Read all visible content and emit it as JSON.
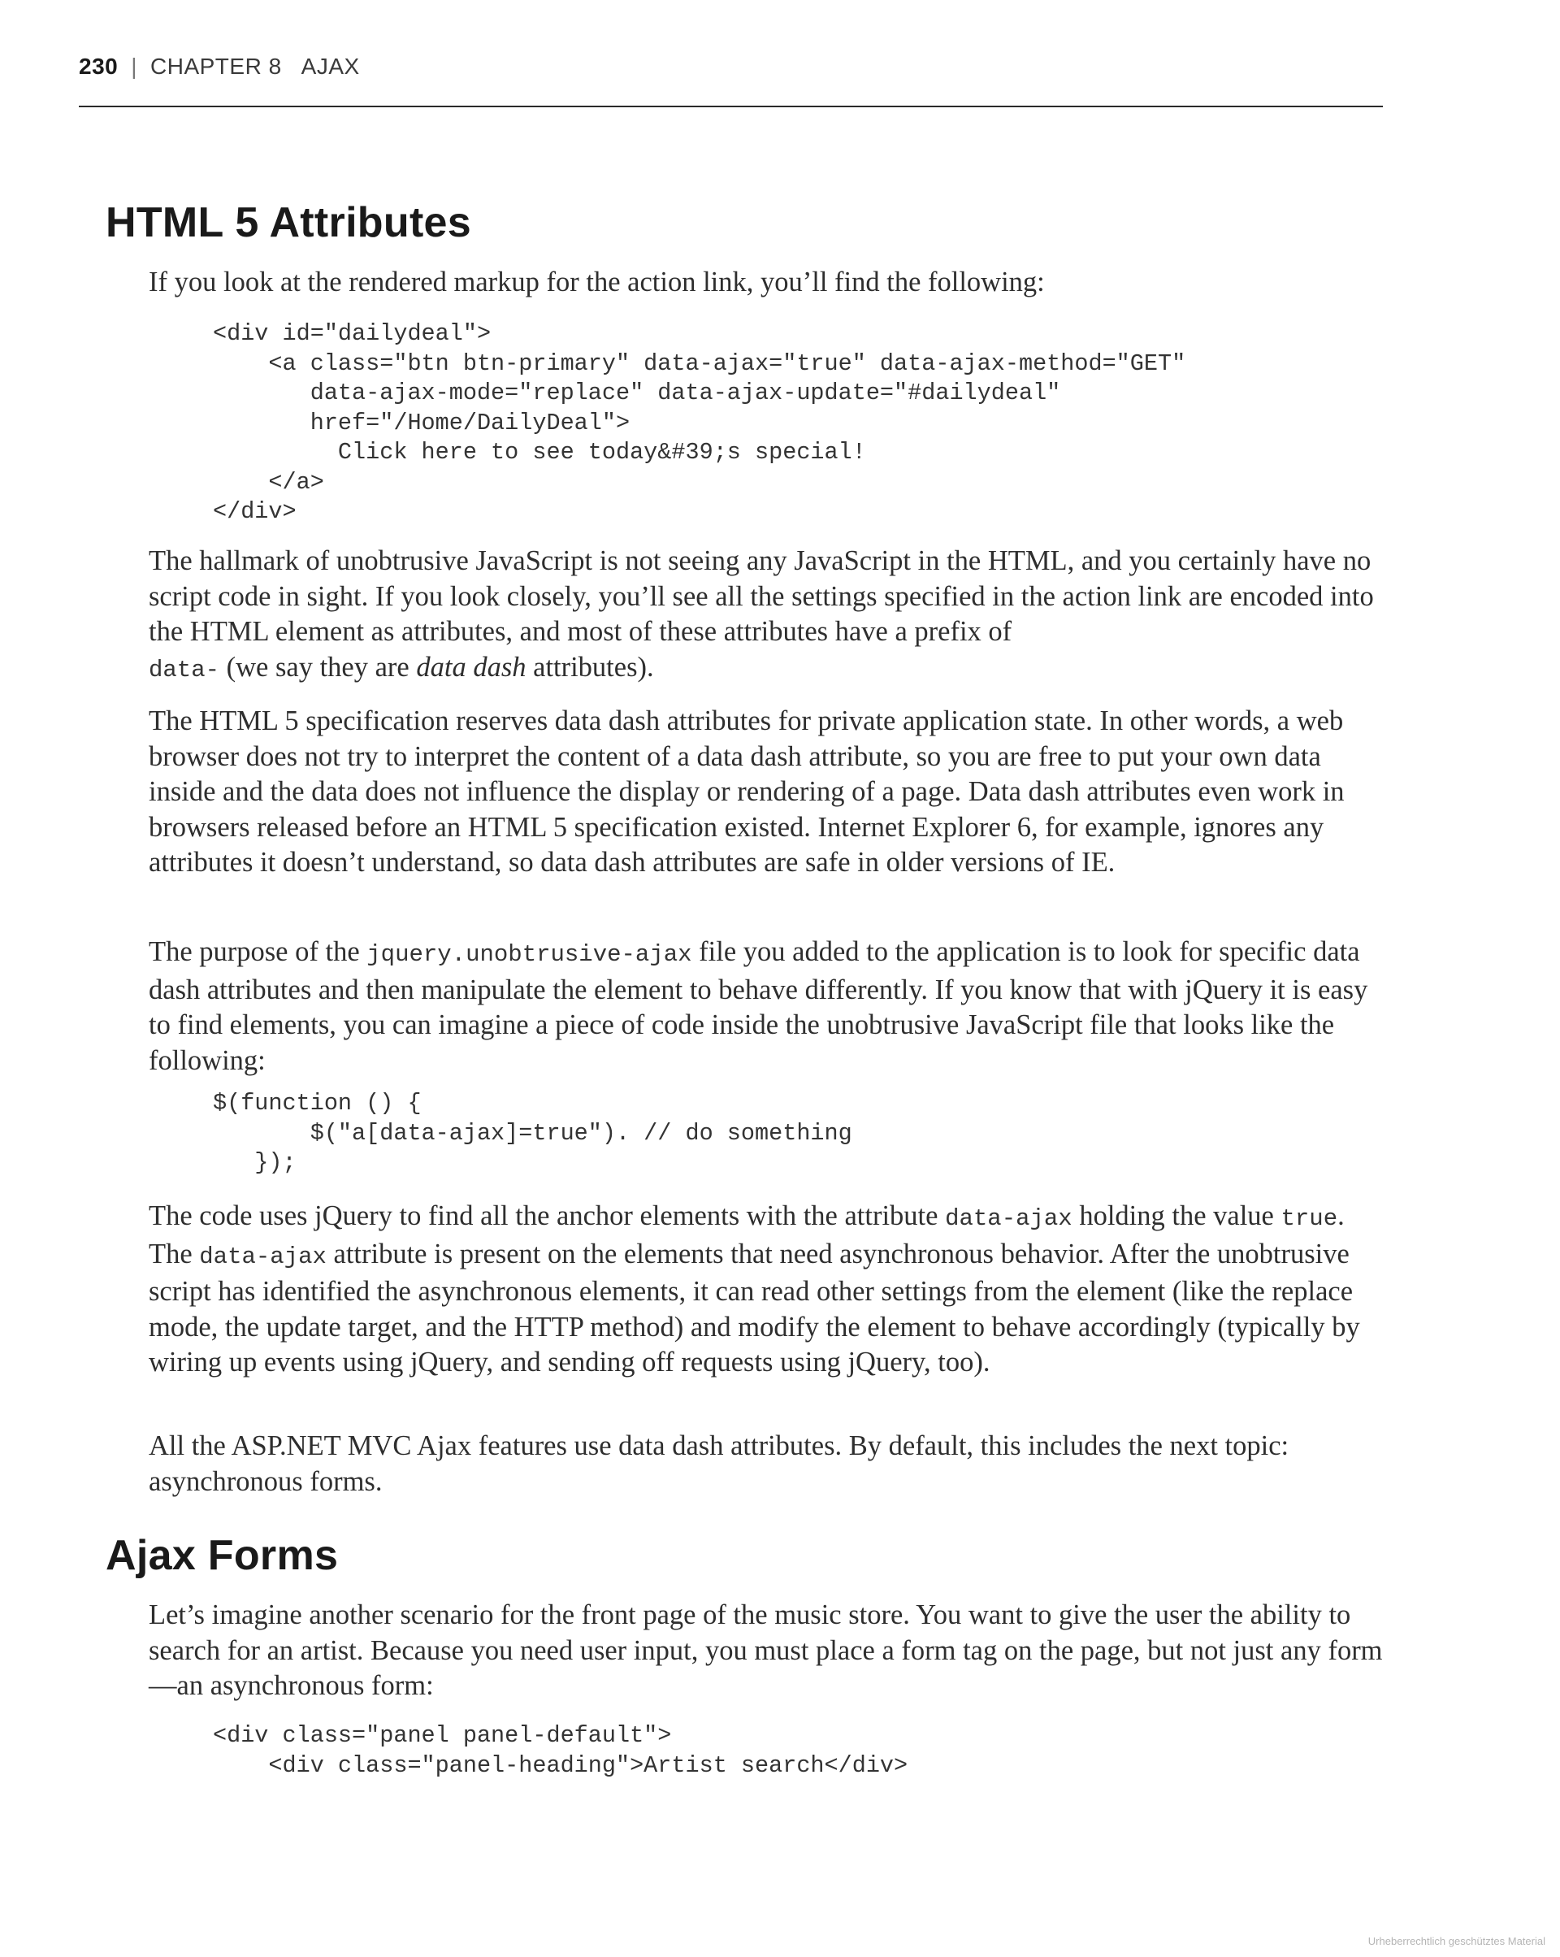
{
  "header": {
    "page_number": "230",
    "separator": "|",
    "chapter": "CHAPTER 8",
    "chapter_title": "AJAX"
  },
  "sections": [
    {
      "title": "HTML 5 Attributes",
      "intro": "If you look at the rendered markup for the action link, you’ll find the following:",
      "code1": [
        "<div id=\"dailydeal\">",
        "    <a class=\"btn btn-primary\" data-ajax=\"true\" data-ajax-method=\"GET\"",
        "       data-ajax-mode=\"replace\" data-ajax-update=\"#dailydeal\"",
        "       href=\"/Home/DailyDeal\">",
        "         Click here to see today&#39;s special!",
        "    </a>",
        "</div>"
      ],
      "p1": {
        "text": "The hallmark of unobtrusive JavaScript is not seeing any JavaScript in the HTML, and you certainly have no script code in sight. If you look closely, you’ll see all the settings specified in the action link are encoded into the HTML element as attributes, and most of these attributes have a prefix of",
        "code": "data-",
        "mid": " (we say they are ",
        "emphasis": "data dash",
        "end": " attributes)."
      },
      "p2": "The HTML 5 specification reserves data dash attributes for private application state. In other words, a web browser does not try to interpret the content of a data dash attribute, so you are free to put your own data inside and the data does not influence the display or rendering of a page. Data dash attributes even work in browsers released before an HTML 5 specification existed. Internet Explorer 6, for example, ignores any attributes it doesn’t understand, so data dash attributes are safe in older versions of IE.",
      "p3": {
        "start": "The purpose of the ",
        "code": "jquery.unobtrusive-ajax",
        "end": " file you added to the application is to look for specific data dash attributes and then manipulate the element to behave differently. If you know that with jQuery it is easy to find elements, you can imagine a piece of code inside the unobtrusive JavaScript file that looks like the following:"
      },
      "code2": [
        "$(function () {",
        "       $(\"a[data-ajax]=true\"). // do something",
        "   });"
      ],
      "p4": {
        "start": "The code uses jQuery to find all the anchor elements with the attribute ",
        "code1": "data-ajax",
        "mid1": " holding the value ",
        "code2": "true",
        "mid2": ". The ",
        "code3": "data-ajax",
        "end": " attribute is present on the elements that need asynchronous behavior. After the unobtrusive script has identified the asynchronous elements, it can read other settings from the element (like the replace mode, the update target, and the HTTP method) and modify the element to behave accordingly (typically by wiring up events using jQuery, and sending off requests using jQuery, too)."
      },
      "p5": "All the ASP.NET MVC Ajax features use data dash attributes. By default, this includes the next topic: asynchronous forms."
    },
    {
      "title": "Ajax Forms",
      "p1": "Let’s imagine another scenario for the front page of the music store. You want to give the user the ability to search for an artist. Because you need user input, you must place a form tag on the page, but not just any form—an asynchronous form:",
      "code1": [
        "<div class=\"panel panel-default\">",
        "    <div class=\"panel-heading\">Artist search</div>"
      ]
    }
  ],
  "watermark": "Urheberrechtlich geschütztes Material"
}
